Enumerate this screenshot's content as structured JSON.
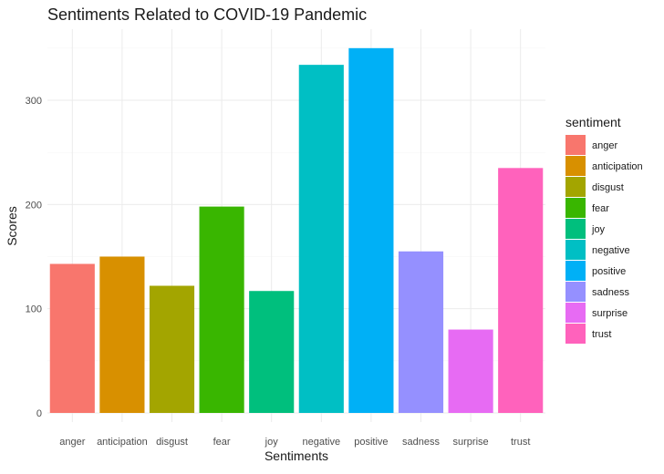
{
  "chart_data": {
    "type": "bar",
    "title": "Sentiments Related to COVID-19 Pandemic",
    "xlabel": "Sentiments",
    "ylabel": "Scores",
    "categories": [
      "anger",
      "anticipation",
      "disgust",
      "fear",
      "joy",
      "negative",
      "positive",
      "sadness",
      "surprise",
      "trust"
    ],
    "values": [
      143,
      150,
      122,
      198,
      117,
      334,
      350,
      155,
      80,
      235
    ],
    "colors": [
      "#F8766D",
      "#D89000",
      "#A3A500",
      "#39B600",
      "#00BF7D",
      "#00BFC4",
      "#00B0F6",
      "#9590FF",
      "#E76BF3",
      "#FF62BC"
    ],
    "ylim": [
      0,
      356
    ],
    "yticks": [
      0,
      100,
      200,
      300
    ],
    "grid": true,
    "legend": {
      "title": "sentiment",
      "position": "right"
    }
  }
}
